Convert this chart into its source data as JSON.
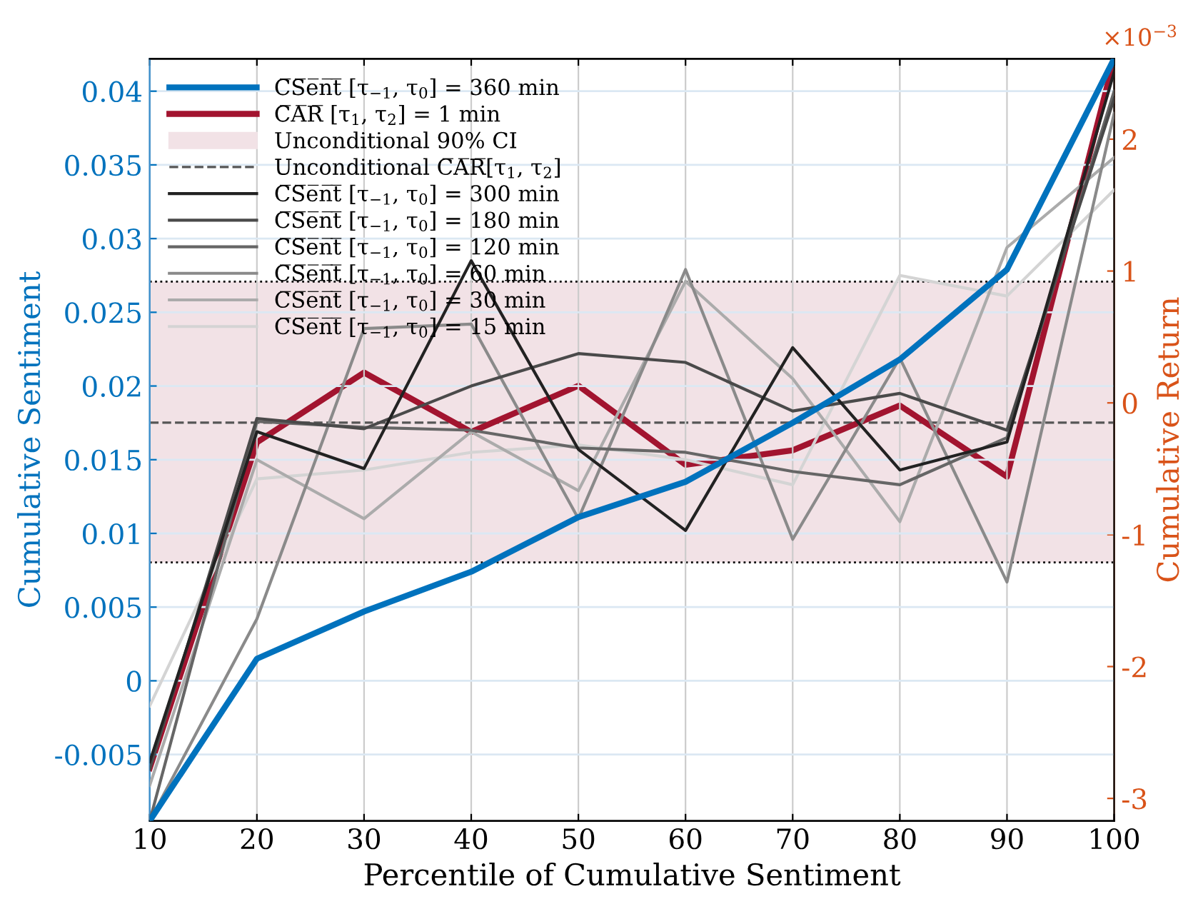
{
  "chart_data": {
    "type": "line",
    "xlabel": "Percentile of Cumulative Sentiment",
    "ylabel": "Cumulative Sentiment",
    "y2label": "Cumulative Return",
    "x": [
      10,
      20,
      30,
      40,
      50,
      60,
      70,
      80,
      90,
      100
    ],
    "xlim": [
      10,
      100
    ],
    "xticks": [
      10,
      20,
      30,
      40,
      50,
      60,
      70,
      80,
      90,
      100
    ],
    "ylim": [
      -0.0095,
      0.0422
    ],
    "yticks": [
      -0.005,
      0,
      0.005,
      0.01,
      0.015,
      0.02,
      0.025,
      0.03,
      0.035,
      0.04
    ],
    "y2lim": [
      -3.17,
      2.61
    ],
    "y2ticks": [
      -3,
      -2,
      -1,
      0,
      1,
      2
    ],
    "annotations": [
      "×10$^{−3}$"
    ],
    "grid": true,
    "legend": "top left",
    "line_style": "solid",
    "marker": "none",
    "bands": [
      {
        "axis": "y2",
        "from": -1.21,
        "to": 0.92,
        "label": "Unconditional 90% CI",
        "color": "#f2e2e6"
      }
    ],
    "ref_lines": [
      {
        "axis": "y2",
        "value": -0.15,
        "label": "Unconditional C̅A̅R̅[τ$_{1}$, τ$_{2}$]",
        "color": "#555555",
        "line_style": "dashed"
      },
      {
        "axis": "y2",
        "value": 0.92,
        "color": "#000000",
        "line_style": "dotted"
      },
      {
        "axis": "y2",
        "value": -1.21,
        "color": "#000000",
        "line_style": "dotted"
      }
    ],
    "series": [
      {
        "name": "C̅S̅e̅n̅t̅ [τ$_{−1}$, τ$_{0}$] = 360 min",
        "color": "#0072bd",
        "values": [
          -0.0095,
          0.0015,
          0.0047,
          0.0074,
          0.0111,
          0.0135,
          0.0175,
          0.0218,
          0.0279,
          0.0422
        ]
      },
      {
        "name": "C̅A̅R̅ [τ$_{1}$, τ$_{2}$] = 1 min",
        "color": "#a2142f",
        "axis": "y2",
        "values": [
          -2.77,
          -0.3,
          0.23,
          -0.22,
          0.13,
          -0.47,
          -0.36,
          -0.02,
          -0.56,
          2.61
        ]
      },
      {
        "name": "C̅S̅e̅n̅t̅ [τ$_{−1}$, τ$_{0}$] = 300 min",
        "color": "#222222",
        "values": [
          -0.0055,
          0.0169,
          0.0144,
          0.0285,
          0.0157,
          0.0102,
          0.0226,
          0.0143,
          0.0162,
          0.0413
        ]
      },
      {
        "name": "C̅S̅e̅n̅t̅ [τ$_{−1}$, τ$_{0}$] = 180 min",
        "color": "#4a4a4a",
        "values": [
          -0.006,
          0.0178,
          0.0171,
          0.02,
          0.0222,
          0.0216,
          0.0183,
          0.0195,
          0.017,
          0.0395
        ]
      },
      {
        "name": "C̅S̅e̅n̅t̅ [τ$_{−1}$, τ$_{0}$] = 120 min",
        "color": "#666666",
        "values": [
          -0.0095,
          0.0176,
          0.0172,
          0.017,
          0.0158,
          0.0155,
          0.0142,
          0.0133,
          0.0165,
          0.04
        ]
      },
      {
        "name": "C̅S̅e̅n̅t̅ [τ$_{−1}$, τ$_{0}$] = 60 min",
        "color": "#8a8a8a",
        "values": [
          -0.0095,
          0.0042,
          0.0239,
          0.0242,
          0.011,
          0.0279,
          0.0096,
          0.0219,
          0.0067,
          0.0385
        ]
      },
      {
        "name": "C̅S̅e̅n̅t̅ [τ$_{−1}$, τ$_{0}$] = 30 min",
        "color": "#ababab",
        "values": [
          -0.0071,
          0.015,
          0.011,
          0.0169,
          0.0129,
          0.0271,
          0.0205,
          0.0108,
          0.0294,
          0.0355
        ]
      },
      {
        "name": "C̅S̅e̅n̅t̅ [τ$_{−1}$, τ$_{0}$] = 15 min",
        "color": "#d4d4d4",
        "values": [
          -0.0017,
          0.0137,
          0.0143,
          0.0155,
          0.016,
          0.015,
          0.0133,
          0.0275,
          0.0261,
          0.0333
        ]
      }
    ]
  }
}
